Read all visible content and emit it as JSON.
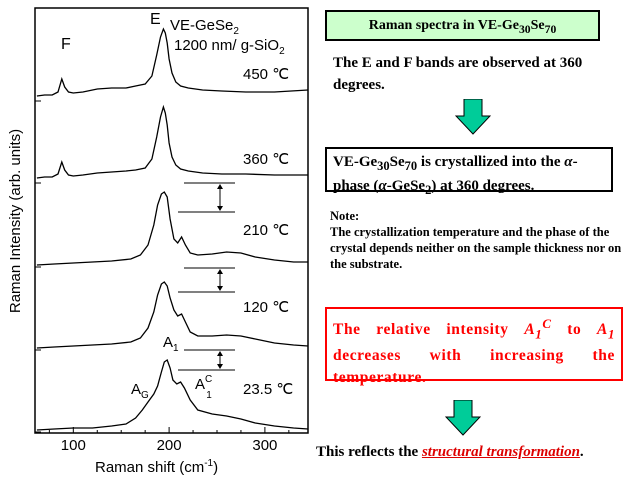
{
  "chart_data": {
    "type": "line",
    "xlabel": "Raman shift  (cm",
    "xlabel_sup": "-1",
    "xlabel_end": ")",
    "ylabel": "Raman Intensity  (arb. units)",
    "xlim": [
      60,
      345
    ],
    "xticks": [
      100,
      200,
      300
    ],
    "sample": {
      "line1": "VE-GeSe",
      "line1_sub": "2",
      "line2": "1200 nm/ g-SiO",
      "line2_sub": "2"
    },
    "series": [
      {
        "name": "450 °C",
        "label": "450 ℃",
        "x": [
          62,
          70,
          78,
          84,
          88,
          91,
          95,
          100,
          110,
          125,
          140,
          155,
          165,
          175,
          182,
          187,
          191,
          194,
          196,
          198,
          200,
          203,
          207,
          212,
          220,
          235,
          255,
          280,
          310,
          345
        ],
        "y": [
          5,
          6,
          6,
          9,
          22,
          14,
          9,
          8,
          9,
          12,
          13,
          13,
          15,
          17,
          25,
          46,
          64,
          72,
          68,
          58,
          42,
          28,
          19,
          15,
          13,
          11,
          10,
          9,
          9,
          11
        ]
      },
      {
        "name": "360 °C",
        "label": "360 ℃",
        "x": [
          62,
          70,
          78,
          84,
          88,
          91,
          95,
          100,
          110,
          125,
          140,
          155,
          165,
          175,
          182,
          187,
          191,
          194,
          196,
          198,
          200,
          203,
          207,
          212,
          220,
          235,
          255,
          280,
          310,
          345
        ],
        "y": [
          5,
          6,
          6,
          9,
          21,
          13,
          8,
          7,
          8,
          10,
          11,
          12,
          13,
          15,
          24,
          46,
          66,
          76,
          70,
          58,
          40,
          26,
          18,
          14,
          12,
          10,
          9,
          9,
          8,
          8
        ]
      },
      {
        "name": "210 °C",
        "label": "210 ℃",
        "x": [
          62,
          80,
          100,
          120,
          140,
          160,
          170,
          178,
          184,
          188,
          192,
          195,
          198,
          201,
          205,
          209,
          213,
          217,
          222,
          230,
          245,
          260,
          275,
          290,
          310,
          330,
          345
        ],
        "y": [
          2,
          3,
          4,
          5,
          6,
          8,
          12,
          22,
          42,
          62,
          73,
          75,
          70,
          48,
          28,
          24,
          30,
          22,
          14,
          12,
          13,
          15,
          14,
          10,
          7,
          5,
          5
        ]
      },
      {
        "name": "120 °C",
        "label": "120 ℃",
        "x": [
          62,
          80,
          100,
          120,
          140,
          160,
          170,
          178,
          184,
          188,
          192,
          195,
          198,
          201,
          205,
          209,
          213,
          217,
          222,
          230,
          245,
          260,
          275,
          290,
          310,
          330,
          345
        ],
        "y": [
          2,
          3,
          4,
          5,
          6,
          8,
          12,
          22,
          38,
          55,
          66,
          68,
          64,
          52,
          40,
          34,
          36,
          28,
          18,
          14,
          14,
          15,
          14,
          11,
          7,
          5,
          4
        ]
      },
      {
        "name": "23.5 °C",
        "label": "23.5 ℃",
        "x": [
          62,
          80,
          100,
          120,
          140,
          155,
          165,
          172,
          178,
          184,
          188,
          192,
          195,
          198,
          201,
          204,
          208,
          212,
          216,
          222,
          230,
          245,
          260,
          275,
          290,
          310,
          330,
          345
        ],
        "y": [
          2,
          3,
          4,
          4,
          6,
          8,
          14,
          22,
          30,
          38,
          46,
          60,
          70,
          72,
          64,
          52,
          48,
          50,
          44,
          32,
          22,
          18,
          16,
          13,
          9,
          6,
          4,
          3
        ]
      }
    ],
    "peak_labels": {
      "E": "E",
      "F": "F",
      "A1": "A",
      "A1_sub": "1",
      "AG": "A",
      "AG_sub": "G",
      "A1C": "A",
      "A1C_sup": "C",
      "A1C_sub": "1"
    }
  },
  "right_panel": {
    "title": {
      "t1": "Raman spectra in VE-Ge",
      "s1": "30",
      "t2": "Se",
      "s2": "70"
    },
    "obs": "The E and F bands are observed at 360 degrees.",
    "cryst": {
      "t1": "VE-Ge",
      "s1": "30",
      "t2": "Se",
      "s2": "70",
      "t3": " is crystallized into the ",
      "alpha": "α",
      "t4": "-phase (",
      "t5": "-GeSe",
      "s3": "2",
      "t6": ") at 360 degrees."
    },
    "note_label": "Note:",
    "note_text": "The crystallization temperature and the phase of the crystal depends neither on the sample thickness nor on the substrate.",
    "relative": {
      "t1": "The relative intensity ",
      "a": "A",
      "s1": "1",
      "sup1": "C",
      "t2": " to ",
      "b": "A",
      "s2": "1",
      "t3": " decreases with increasing the temperature."
    },
    "reflect": {
      "t1": "This reflects the ",
      "em": "structural transformation",
      "t2": "."
    },
    "arrow_color": "#00cc99"
  }
}
